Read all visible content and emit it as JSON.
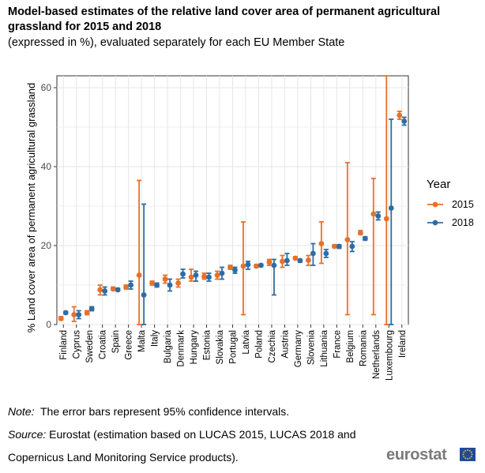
{
  "header": {
    "title": "Model-based estimates of the relative land cover area of permanent agricultural grassland for 2015 and 2018",
    "subtitle": "(expressed in %), evaluated separately for each EU Member State"
  },
  "notes": {
    "note_label": "Note:",
    "note_text": "The error bars represent 95% confidence intervals.",
    "source_label": "Source:",
    "source_text_1": "Eurostat (estimation based on LUCAS 2015, LUCAS 2018 and",
    "source_text_2": "Copernicus Land Monitoring Service products)."
  },
  "logo": {
    "text": "eurostat"
  },
  "colors": {
    "s2015": "#E8702A",
    "s2018": "#2E6DA4",
    "grid": "#E6E6E6",
    "axis": "#333333"
  },
  "chart_data": {
    "type": "scatter",
    "title": "",
    "xlabel": "",
    "ylabel": "% Land cover area of permanent agricultural grassland",
    "ylim": [
      0,
      63
    ],
    "yticks": [
      0,
      20,
      40,
      60
    ],
    "ytick_labels": [
      "0",
      "20",
      "40",
      "60"
    ],
    "grid": true,
    "legend_title": "Year",
    "legend_position": "right",
    "categories": [
      "Finland",
      "Cyprus",
      "Sweden",
      "Croatia",
      "Spain",
      "Greece",
      "Malta",
      "Italy",
      "Bulgaria",
      "Denmark",
      "Hungary",
      "Estonia",
      "Slovakia",
      "Portugal",
      "Latvia",
      "Poland",
      "Czechia",
      "Austria",
      "Germany",
      "Slovenia",
      "Lithuania",
      "France",
      "Belgium",
      "Romania",
      "Netherlands",
      "Luxembourg",
      "Ireland"
    ],
    "series": [
      {
        "name": "2015",
        "values": [
          1.5,
          2.5,
          3.0,
          8.8,
          9.0,
          9.5,
          12.5,
          10.5,
          11.5,
          10.5,
          12.0,
          12.2,
          12.5,
          14.5,
          14.8,
          14.8,
          15.8,
          16.0,
          16.8,
          16.3,
          20.5,
          19.8,
          21.5,
          23.2,
          28.0,
          26.8,
          53.0
        ],
        "lower": [
          1.2,
          0.8,
          2.5,
          7.5,
          8.8,
          9.0,
          0.0,
          10.0,
          10.5,
          9.5,
          11.0,
          11.5,
          11.5,
          14.0,
          2.5,
          14.5,
          15.0,
          14.5,
          16.5,
          15.0,
          15.5,
          19.5,
          2.5,
          22.8,
          2.5,
          0.0,
          52.0
        ],
        "upper": [
          2.0,
          4.5,
          3.5,
          10.0,
          9.5,
          10.0,
          36.5,
          11.0,
          12.5,
          11.5,
          14.0,
          13.0,
          13.5,
          15.0,
          26.0,
          15.2,
          16.5,
          17.5,
          17.2,
          17.5,
          26.0,
          20.2,
          41.0,
          23.8,
          37.0,
          63.0,
          54.0
        ]
      },
      {
        "name": "2018",
        "values": [
          3.0,
          2.5,
          4.0,
          8.5,
          8.8,
          10.0,
          7.5,
          10.0,
          10.0,
          12.8,
          12.5,
          12.0,
          13.0,
          13.8,
          15.2,
          15.0,
          15.0,
          16.2,
          16.2,
          18.0,
          18.0,
          19.8,
          19.8,
          21.8,
          27.5,
          29.5,
          51.5
        ],
        "lower": [
          2.7,
          1.5,
          3.5,
          7.5,
          8.5,
          9.0,
          0.0,
          9.5,
          8.5,
          11.8,
          11.0,
          11.0,
          11.5,
          13.0,
          14.0,
          14.7,
          7.5,
          15.0,
          15.8,
          15.0,
          17.0,
          19.3,
          18.5,
          21.4,
          26.5,
          0.0,
          50.5
        ],
        "upper": [
          3.3,
          3.5,
          4.5,
          9.5,
          9.2,
          11.0,
          30.5,
          10.5,
          11.5,
          14.0,
          13.5,
          13.0,
          14.5,
          14.5,
          16.0,
          15.3,
          16.5,
          18.0,
          16.5,
          20.5,
          19.0,
          20.2,
          21.0,
          22.2,
          28.5,
          52.0,
          52.5
        ]
      }
    ]
  }
}
